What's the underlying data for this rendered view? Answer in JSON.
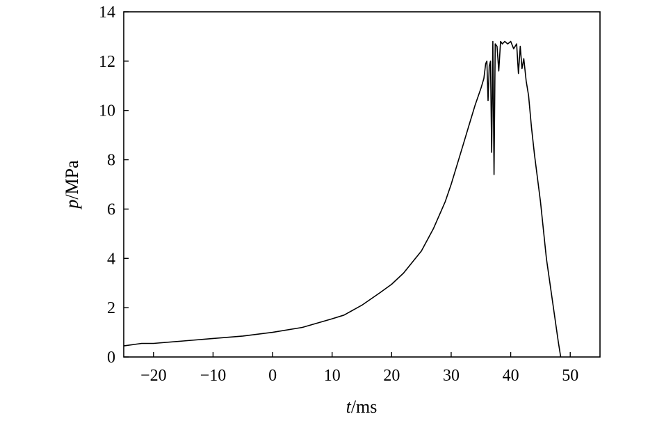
{
  "chart_data": {
    "type": "line",
    "title": "",
    "xlabel": {
      "var": "t",
      "unit": "/ms"
    },
    "ylabel": {
      "var": "p",
      "unit": "/MPa"
    },
    "xlim": [
      -25,
      55
    ],
    "ylim": [
      0,
      14
    ],
    "xticks": [
      -20,
      -10,
      0,
      10,
      20,
      30,
      40,
      50
    ],
    "yticks": [
      0,
      2,
      4,
      6,
      8,
      10,
      12,
      14
    ],
    "xtick_labels": [
      "−20",
      "−10",
      "0",
      "10",
      "20",
      "30",
      "40",
      "50"
    ],
    "ytick_labels": [
      "0",
      "2",
      "4",
      "6",
      "8",
      "10",
      "12",
      "14"
    ],
    "grid": false,
    "legend": "none",
    "line_color": "#000000",
    "series": [
      {
        "x": [
          -25,
          -22,
          -20,
          -15,
          -10,
          -5,
          0,
          5,
          10,
          12,
          15,
          18,
          20,
          22,
          25,
          27,
          29,
          30,
          31,
          32,
          33,
          34,
          35,
          35.5,
          35.8,
          36,
          36.2,
          36.4,
          36.6,
          36.8,
          37.0,
          37.2,
          37.4,
          37.7,
          38.0,
          38.3,
          38.6,
          39.0,
          39.5,
          40.0,
          40.5,
          41.0,
          41.3,
          41.6,
          41.9,
          42.2,
          42.6,
          43.0,
          43.5,
          44,
          45,
          46,
          47,
          48,
          48.4
        ],
        "y": [
          0.45,
          0.55,
          0.55,
          0.65,
          0.75,
          0.85,
          1.0,
          1.2,
          1.55,
          1.7,
          2.1,
          2.6,
          2.95,
          3.4,
          4.3,
          5.2,
          6.3,
          7.0,
          7.8,
          8.6,
          9.4,
          10.2,
          10.9,
          11.3,
          11.9,
          12.0,
          10.4,
          11.8,
          12.0,
          8.3,
          12.8,
          7.4,
          12.7,
          12.6,
          11.6,
          12.8,
          12.7,
          12.8,
          12.7,
          12.8,
          12.5,
          12.7,
          11.5,
          12.6,
          11.7,
          12.1,
          11.2,
          10.6,
          9.3,
          8.2,
          6.3,
          4.0,
          2.3,
          0.6,
          0.0
        ]
      }
    ]
  }
}
